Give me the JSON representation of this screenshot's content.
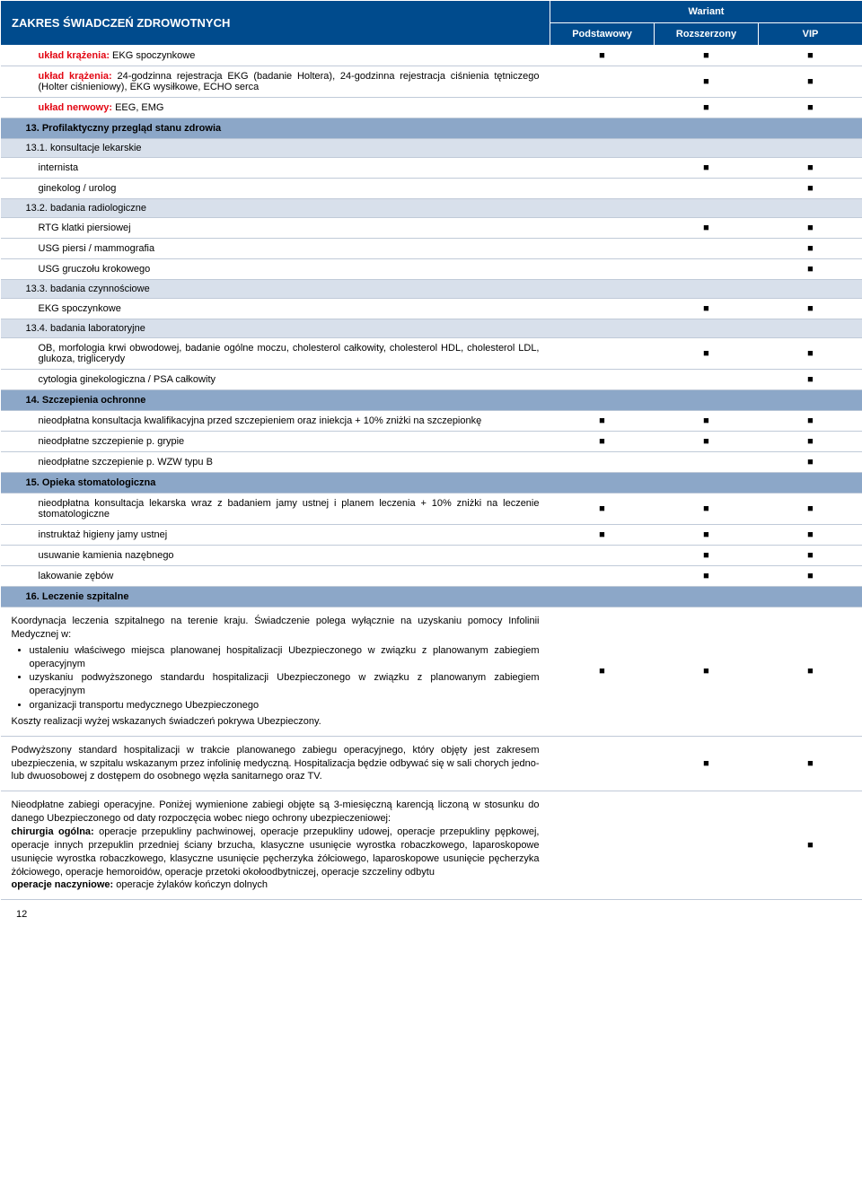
{
  "colors": {
    "header_bg": "#004b8d",
    "header_fg": "#ffffff",
    "section_bg": "#8ca7c8",
    "sub_bg": "#d8e0eb",
    "border": "#c0cad8",
    "red": "#e30613",
    "mark": "■"
  },
  "header": {
    "zakres": "ZAKRES ŚWIADCZEŃ ZDROWOTNYCH",
    "wariant": "Wariant",
    "col1": "Podstawowy",
    "col2": "Rozszerzony",
    "col3": "VIP"
  },
  "rows": [
    {
      "type": "data",
      "desc_bold": true,
      "text_html": "<span class='redtxt'>układ krążenia:</span> EKG spoczynkowe",
      "v": [
        true,
        true,
        true
      ]
    },
    {
      "type": "data",
      "text_html": "<span class='redtxt'>układ krążenia:</span> 24-godzinna rejestracja EKG (badanie Holtera), 24-godzinna rejestracja ciśnienia tętniczego (Holter ciśnieniowy), EKG wysiłkowe, ECHO serca",
      "v": [
        false,
        true,
        true
      ]
    },
    {
      "type": "data",
      "text_html": "<span class='redtxt'>układ nerwowy:</span> EEG, EMG",
      "v": [
        false,
        true,
        true
      ]
    },
    {
      "type": "section",
      "text": "13. Profilaktyczny przegląd stanu zdrowia"
    },
    {
      "type": "sub",
      "text": "13.1. konsultacje lekarskie"
    },
    {
      "type": "data",
      "text": "internista",
      "v": [
        false,
        true,
        true
      ]
    },
    {
      "type": "data",
      "text": "ginekolog / urolog",
      "v": [
        false,
        false,
        true
      ]
    },
    {
      "type": "sub",
      "text": "13.2. badania radiologiczne"
    },
    {
      "type": "data",
      "text": "RTG klatki piersiowej",
      "v": [
        false,
        true,
        true
      ]
    },
    {
      "type": "data",
      "text": "USG piersi / mammografia",
      "v": [
        false,
        false,
        true
      ]
    },
    {
      "type": "data",
      "text": "USG gruczołu krokowego",
      "v": [
        false,
        false,
        true
      ]
    },
    {
      "type": "sub",
      "text": "13.3. badania czynnościowe"
    },
    {
      "type": "data",
      "text": "EKG spoczynkowe",
      "v": [
        false,
        true,
        true
      ]
    },
    {
      "type": "sub",
      "text": "13.4. badania laboratoryjne"
    },
    {
      "type": "data",
      "text": "OB, morfologia krwi obwodowej, badanie ogólne moczu, cholesterol całkowity, cholesterol HDL, cholesterol LDL, glukoza, triglicerydy",
      "v": [
        false,
        true,
        true
      ]
    },
    {
      "type": "data",
      "text": "cytologia ginekologiczna / PSA całkowity",
      "v": [
        false,
        false,
        true
      ]
    },
    {
      "type": "section",
      "text": "14. Szczepienia ochronne"
    },
    {
      "type": "data",
      "text": "nieodpłatna konsultacja kwalifikacyjna przed szczepieniem oraz iniekcja + 10% zniżki na szczepionkę",
      "v": [
        true,
        true,
        true
      ]
    },
    {
      "type": "data",
      "text": "nieodpłatne szczepienie p. grypie",
      "v": [
        true,
        true,
        true
      ]
    },
    {
      "type": "data",
      "text": "nieodpłatne szczepienie p. WZW typu B",
      "v": [
        false,
        false,
        true
      ]
    },
    {
      "type": "section",
      "text": "15. Opieka stomatologiczna"
    },
    {
      "type": "data",
      "text": "nieodpłatna konsultacja lekarska wraz z badaniem jamy ustnej i planem leczenia + 10% zniżki na leczenie stomatologiczne",
      "v": [
        true,
        true,
        true
      ]
    },
    {
      "type": "data",
      "text": "instruktaż higieny jamy ustnej",
      "v": [
        true,
        true,
        true
      ]
    },
    {
      "type": "data",
      "text": "usuwanie kamienia nazębnego",
      "v": [
        false,
        true,
        true
      ]
    },
    {
      "type": "data",
      "text": "lakowanie zębów",
      "v": [
        false,
        true,
        true
      ]
    },
    {
      "type": "section",
      "text": "16. Leczenie szpitalne"
    },
    {
      "type": "long",
      "html": "Koordynacja leczenia szpitalnego na terenie kraju. Świadczenie polega wyłącznie na uzyskaniu pomocy Infolinii Medycznej w:<ul><li>ustaleniu właściwego miejsca planowanej hospitalizacji Ubezpieczonego w związku z planowanym zabiegiem operacyjnym</li><li>uzyskaniu podwyższonego standardu hospitalizacji Ubezpieczonego w związku z planowanym zabiegiem operacyjnym</li><li>organizacji transportu medycznego Ubezpieczonego</li></ul>Koszty realizacji wyżej wskazanych świadczeń pokrywa Ubezpieczony.",
      "v": [
        true,
        true,
        true
      ]
    },
    {
      "type": "long",
      "html": "Podwyższony standard hospitalizacji w trakcie planowanego zabiegu operacyjnego, który objęty jest zakresem ubezpieczenia, w szpitalu wskazanym przez infolinię medyczną. Hospitalizacja będzie odbywać się w sali chorych jedno- lub dwuosobowej z dostępem do osobnego węzła sanitarnego oraz TV.",
      "v": [
        false,
        true,
        true
      ]
    },
    {
      "type": "long",
      "html": "Nieodpłatne zabiegi operacyjne. Poniżej wymienione zabiegi objęte są 3-miesięczną karencją liczoną w stosunku do danego Ubezpieczonego od daty rozpoczęcia wobec niego ochrony ubezpieczeniowej:<br><b>chirurgia ogólna:</b> operacje przepukliny pachwinowej, operacje przepukliny udowej, operacje przepukliny pępkowej, operacje innych przepuklin przedniej ściany brzucha, klasyczne usunięcie wyrostka robaczkowego, laparoskopowe usunięcie wyrostka robaczkowego, klasyczne usunięcie pęcherzyka żółciowego, laparoskopowe usunięcie pęcherzyka żółciowego, operacje hemoroidów, operacje przetoki okołoodbytniczej, operacje szczeliny odbytu<br><b>operacje naczyniowe:</b> operacje żylaków kończyn dolnych",
      "v": [
        false,
        false,
        true
      ]
    }
  ],
  "page_number": "12"
}
